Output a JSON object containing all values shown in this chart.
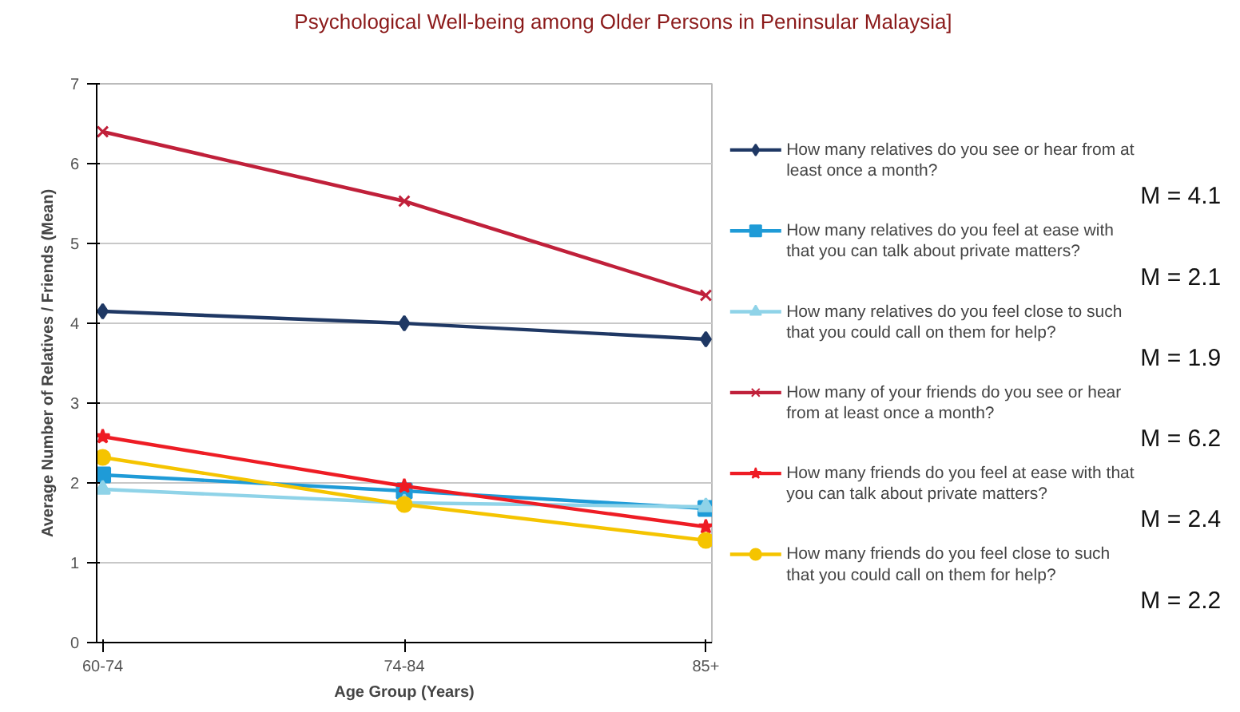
{
  "chart_data": {
    "type": "line",
    "title": "Psychological Well-being among Older Persons in Peninsular Malaysia]",
    "xlabel": "Age Group (Years)",
    "ylabel": "Average Number of Relatives / Friends (Mean)",
    "categories": [
      "60-74",
      "74-84",
      "85+"
    ],
    "ylim": [
      0,
      7
    ],
    "yticks": [
      0,
      1,
      2,
      3,
      4,
      5,
      6,
      7
    ],
    "grid": "y",
    "legend": "right",
    "series": [
      {
        "name": "How many relatives do you see or hear from at least once a month?",
        "color": "#1f3864",
        "marker": "diamond",
        "values": [
          4.15,
          4.0,
          3.8
        ]
      },
      {
        "name": "How many relatives do you feel at ease with that you can talk about private matters?",
        "color": "#1f9bd7",
        "marker": "square",
        "values": [
          2.1,
          1.9,
          1.68
        ]
      },
      {
        "name": "How many relatives do you feel close to such that you could call on them for help?",
        "color": "#8fd3e8",
        "marker": "triangle",
        "values": [
          1.92,
          1.75,
          1.7
        ]
      },
      {
        "name": "How many of your friends do you see or hear from at least once a month?",
        "color": "#c0203a",
        "marker": "cross",
        "values": [
          6.4,
          5.53,
          4.35
        ]
      },
      {
        "name": "How many friends do you feel at ease with that you can talk about private matters?",
        "color": "#ee1c24",
        "marker": "star",
        "values": [
          2.58,
          1.96,
          1.45
        ]
      },
      {
        "name": "How many friends do you feel close to such that you could call on them for help?",
        "color": "#f5c400",
        "marker": "circle",
        "values": [
          2.32,
          1.73,
          1.28
        ]
      }
    ],
    "annotations": [
      "M = 4.1",
      "M = 2.1",
      "M = 1.9",
      "M = 6.2",
      "M = 2.4",
      "M = 2.2"
    ]
  }
}
